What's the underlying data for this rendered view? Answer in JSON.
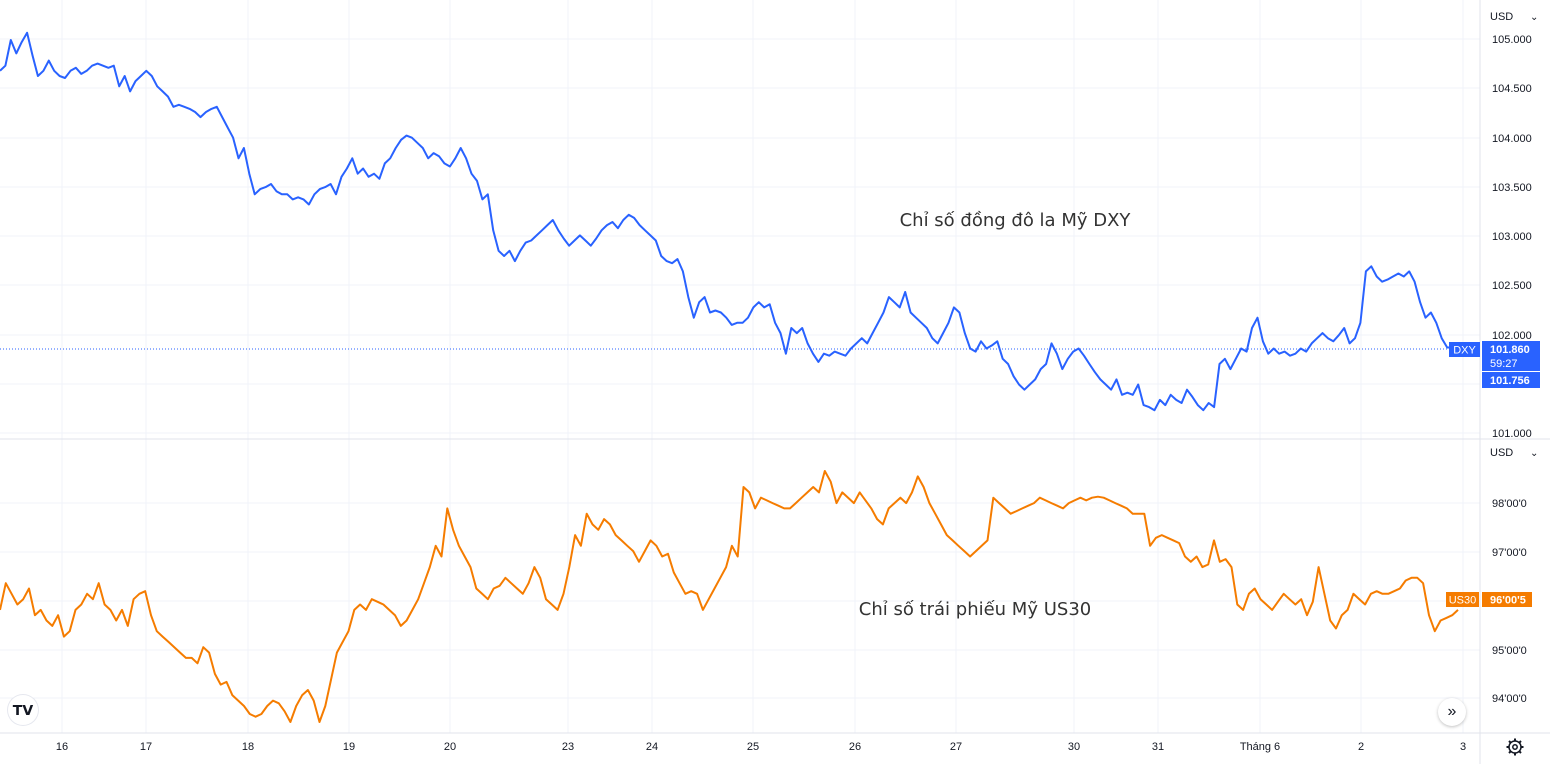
{
  "currency_top": "USD",
  "currency_bottom": "USD",
  "annotation_top": "Chỉ số đồng đô la Mỹ DXY",
  "annotation_bottom": "Chỉ số trái phiếu Mỹ US30",
  "colors": {
    "dxy": "#2962ff",
    "us30": "#f57c00",
    "grid": "#f0f3fa",
    "axis_text": "#131722"
  },
  "badges": {
    "dxy_symbol": "DXY",
    "dxy_price": "101.860",
    "dxy_timer": "59:27",
    "dxy_low": "101.756",
    "us30_symbol": "US30",
    "us30_price": "96'00'5"
  },
  "x_axis_labels": [
    "16",
    "17",
    "18",
    "19",
    "20",
    "23",
    "24",
    "25",
    "26",
    "27",
    "30",
    "31",
    "Tháng 6",
    "2",
    "3"
  ],
  "chart_data": [
    {
      "type": "line",
      "series": [
        {
          "name": "DXY"
        }
      ],
      "y_ticks": [
        "105.000",
        "104.500",
        "104.000",
        "103.500",
        "103.000",
        "102.500",
        "102.000",
        "101.500",
        "101.000"
      ],
      "ylim": [
        100.98,
        105.2
      ],
      "values": [
        104.55,
        104.6,
        104.85,
        104.72,
        104.83,
        104.92,
        104.7,
        104.5,
        104.55,
        104.65,
        104.55,
        104.5,
        104.48,
        104.55,
        104.58,
        104.52,
        104.55,
        104.6,
        104.62,
        104.6,
        104.58,
        104.6,
        104.4,
        104.5,
        104.35,
        104.45,
        104.5,
        104.55,
        104.5,
        104.4,
        104.35,
        104.3,
        104.2,
        104.22,
        104.2,
        104.18,
        104.15,
        104.1,
        104.15,
        104.18,
        104.2,
        104.1,
        104.0,
        103.9,
        103.7,
        103.8,
        103.55,
        103.35,
        103.4,
        103.42,
        103.45,
        103.38,
        103.35,
        103.35,
        103.3,
        103.32,
        103.3,
        103.25,
        103.35,
        103.4,
        103.42,
        103.45,
        103.35,
        103.52,
        103.6,
        103.7,
        103.55,
        103.6,
        103.52,
        103.55,
        103.5,
        103.65,
        103.7,
        103.8,
        103.88,
        103.92,
        103.9,
        103.85,
        103.8,
        103.7,
        103.75,
        103.72,
        103.65,
        103.62,
        103.7,
        103.8,
        103.7,
        103.55,
        103.48,
        103.3,
        103.35,
        103.0,
        102.8,
        102.75,
        102.8,
        102.7,
        102.8,
        102.88,
        102.9,
        102.95,
        103.0,
        103.05,
        103.1,
        103.0,
        102.92,
        102.85,
        102.9,
        102.95,
        102.9,
        102.85,
        102.92,
        103.0,
        103.05,
        103.08,
        103.02,
        103.1,
        103.15,
        103.12,
        103.05,
        103.0,
        102.95,
        102.9,
        102.75,
        102.7,
        102.68,
        102.72,
        102.6,
        102.35,
        102.15,
        102.3,
        102.35,
        102.2,
        102.22,
        102.2,
        102.15,
        102.08,
        102.1,
        102.1,
        102.15,
        102.25,
        102.3,
        102.25,
        102.28,
        102.1,
        102.0,
        101.8,
        102.05,
        102.0,
        102.05,
        101.9,
        101.8,
        101.72,
        101.8,
        101.78,
        101.82,
        101.8,
        101.78,
        101.85,
        101.9,
        101.95,
        101.9,
        102.0,
        102.1,
        102.2,
        102.35,
        102.3,
        102.25,
        102.4,
        102.2,
        102.15,
        102.1,
        102.05,
        101.95,
        101.9,
        102.0,
        102.1,
        102.25,
        102.2,
        102.0,
        101.85,
        101.82,
        101.92,
        101.85,
        101.88,
        101.92,
        101.75,
        101.7,
        101.58,
        101.5,
        101.45,
        101.5,
        101.55,
        101.65,
        101.7,
        101.9,
        101.8,
        101.65,
        101.75,
        101.82,
        101.85,
        101.78,
        101.7,
        101.62,
        101.55,
        101.5,
        101.45,
        101.55,
        101.4,
        101.42,
        101.4,
        101.5,
        101.3,
        101.28,
        101.25,
        101.35,
        101.3,
        101.4,
        101.35,
        101.32,
        101.45,
        101.38,
        101.3,
        101.25,
        101.32,
        101.28,
        101.7,
        101.75,
        101.65,
        101.75,
        101.85,
        101.82,
        102.05,
        102.15,
        101.92,
        101.8,
        101.85,
        101.8,
        101.82,
        101.78,
        101.8,
        101.85,
        101.82,
        101.9,
        101.95,
        102.0,
        101.95,
        101.92,
        101.98,
        102.05,
        101.9,
        101.95,
        102.1,
        102.6,
        102.65,
        102.55,
        102.5,
        102.52,
        102.55,
        102.58,
        102.55,
        102.6,
        102.5,
        102.3,
        102.15,
        102.2,
        102.1,
        101.95,
        101.86,
        101.86,
        101.84
      ]
    },
    {
      "type": "line",
      "series": [
        {
          "name": "US30"
        }
      ],
      "y_ticks": [
        "98'00'0",
        "97'00'0",
        "96'00'0",
        "95'00'0",
        "94'00'0"
      ],
      "ylim": [
        93.75,
        98.9
      ],
      "values": [
        96.0,
        96.5,
        96.3,
        96.1,
        96.2,
        96.4,
        95.9,
        96.0,
        95.8,
        95.7,
        95.9,
        95.5,
        95.6,
        96.0,
        96.1,
        96.3,
        96.2,
        96.5,
        96.1,
        96.0,
        95.8,
        96.0,
        95.7,
        96.2,
        96.3,
        96.35,
        95.9,
        95.6,
        95.5,
        95.4,
        95.3,
        95.2,
        95.1,
        95.1,
        95.0,
        95.3,
        95.2,
        94.8,
        94.6,
        94.65,
        94.4,
        94.3,
        94.2,
        94.05,
        94.0,
        94.05,
        94.2,
        94.3,
        94.25,
        94.1,
        93.9,
        94.2,
        94.4,
        94.5,
        94.3,
        93.9,
        94.2,
        94.7,
        95.2,
        95.4,
        95.6,
        96.0,
        96.1,
        96.0,
        96.2,
        96.15,
        96.1,
        96.0,
        95.9,
        95.7,
        95.8,
        96.0,
        96.2,
        96.5,
        96.8,
        97.2,
        97.0,
        97.9,
        97.5,
        97.2,
        97.0,
        96.8,
        96.4,
        96.3,
        96.2,
        96.4,
        96.45,
        96.6,
        96.5,
        96.4,
        96.3,
        96.5,
        96.8,
        96.6,
        96.2,
        96.1,
        96.0,
        96.3,
        96.8,
        97.4,
        97.2,
        97.8,
        97.6,
        97.5,
        97.7,
        97.6,
        97.4,
        97.3,
        97.2,
        97.1,
        96.9,
        97.1,
        97.3,
        97.2,
        97.0,
        97.05,
        96.7,
        96.5,
        96.3,
        96.35,
        96.3,
        96.0,
        96.2,
        96.4,
        96.6,
        96.8,
        97.2,
        97.0,
        98.3,
        98.2,
        97.9,
        98.1,
        98.05,
        98.0,
        97.95,
        97.9,
        97.9,
        98.0,
        98.1,
        98.2,
        98.3,
        98.2,
        98.6,
        98.4,
        98.0,
        98.2,
        98.1,
        98.0,
        98.2,
        98.05,
        97.9,
        97.7,
        97.6,
        97.9,
        98.0,
        98.1,
        98.0,
        98.2,
        98.5,
        98.3,
        98.0,
        97.8,
        97.6,
        97.4,
        97.3,
        97.2,
        97.1,
        97.0,
        97.1,
        97.2,
        97.3,
        98.1,
        98.0,
        97.9,
        97.8,
        97.85,
        97.9,
        97.95,
        98.0,
        98.1,
        98.05,
        98.0,
        97.95,
        97.9,
        98.0,
        98.05,
        98.1,
        98.05,
        98.1,
        98.12,
        98.1,
        98.05,
        98.0,
        97.95,
        97.9,
        97.8,
        97.8,
        97.8,
        97.2,
        97.35,
        97.4,
        97.35,
        97.3,
        97.25,
        97.0,
        96.9,
        97.0,
        96.8,
        96.85,
        97.3,
        96.9,
        96.95,
        96.8,
        96.1,
        96.0,
        96.3,
        96.4,
        96.2,
        96.1,
        96.0,
        96.15,
        96.3,
        96.2,
        96.1,
        96.2,
        95.9,
        96.15,
        96.8,
        96.3,
        95.8,
        95.65,
        95.9,
        96.0,
        96.3,
        96.2,
        96.1,
        96.3,
        96.35,
        96.3,
        96.3,
        96.35,
        96.4,
        96.55,
        96.6,
        96.6,
        96.5,
        95.9,
        95.6,
        95.8,
        95.85,
        95.9,
        96.0
      ]
    }
  ]
}
